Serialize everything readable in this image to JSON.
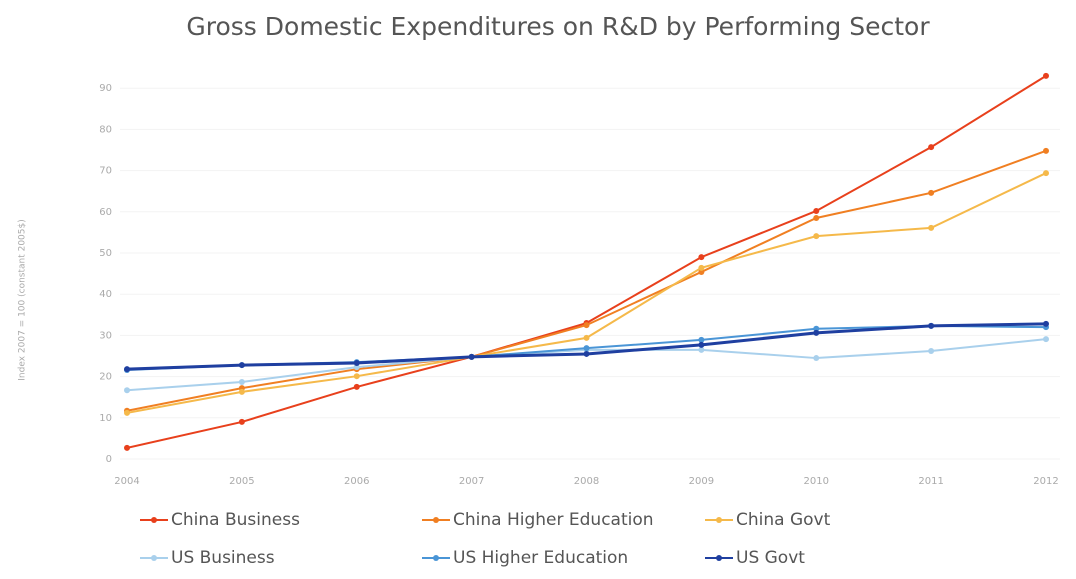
{
  "chart_data": {
    "type": "line",
    "title": "Gross Domestic Expenditures on R&D by Performing Sector",
    "y_label": "Index 2007 = 100 (constant 2005$)",
    "categories": [
      "2004",
      "2005",
      "2006",
      "2007",
      "2008",
      "2009",
      "2010",
      "2011",
      "2012"
    ],
    "series": [
      {
        "name": "China Business",
        "color": "#e8401c",
        "values": [
          2.7,
          9.0,
          17.5,
          24.8,
          33.0,
          49.0,
          60.2,
          75.7,
          93.0
        ]
      },
      {
        "name": "China Higher Education",
        "color": "#f07f22",
        "values": [
          11.7,
          17.2,
          21.8,
          24.8,
          32.5,
          45.4,
          58.5,
          64.6,
          74.8
        ]
      },
      {
        "name": "China Govt",
        "color": "#f5b94a",
        "values": [
          11.2,
          16.3,
          20.1,
          24.8,
          29.4,
          46.4,
          54.1,
          56.1,
          69.4
        ]
      },
      {
        "name": "US Business",
        "color": "#a9d0ec",
        "values": [
          16.7,
          18.7,
          22.3,
          24.8,
          26.5,
          26.5,
          24.5,
          26.2,
          29.1
        ]
      },
      {
        "name": "US Higher Education",
        "color": "#4a95d6",
        "values": [
          21.6,
          22.8,
          23.5,
          24.8,
          26.9,
          28.9,
          31.6,
          32.3,
          32.0
        ]
      },
      {
        "name": "US Govt",
        "color": "#1f3fa0",
        "values": [
          21.8,
          22.8,
          23.3,
          24.8,
          25.5,
          27.7,
          30.6,
          32.3,
          32.8
        ]
      }
    ],
    "ylim": [
      0,
      95
    ],
    "yticks": [
      0,
      10,
      20,
      30,
      40,
      50,
      60,
      70,
      80,
      90
    ],
    "grid": true,
    "legend": "bottom"
  }
}
